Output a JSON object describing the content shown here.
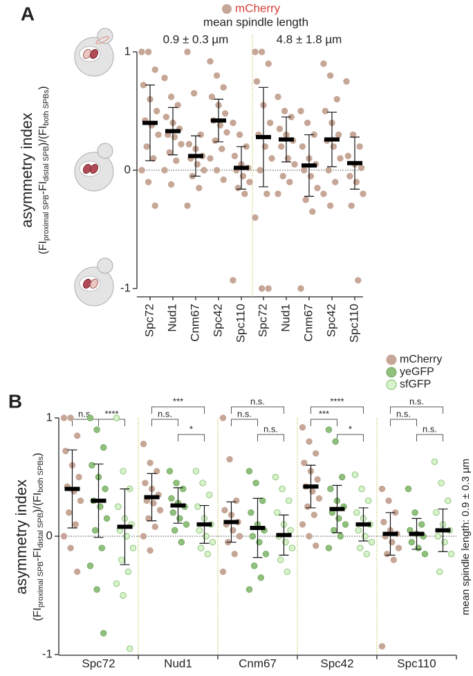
{
  "chart_data": [
    {
      "type": "strip",
      "panel": "A",
      "subtitle": "mean spindle length",
      "y_label": "asymmetry index",
      "y_label_formula": [
        "(FI",
        "proximal SPB",
        "-FI",
        "distal SPB",
        ")/(FI",
        "both SPBs",
        ")"
      ],
      "categories": [
        "Spc72",
        "Nud1",
        "Cnm67",
        "Spc42",
        "Spc110",
        "Spc72",
        "Nud1",
        "Cnm67",
        "Spc42",
        "Spc110"
      ],
      "groups": [
        {
          "label": "0.9 ± 0.3 µm",
          "from": 0,
          "to": 4
        },
        {
          "label": "4.8 ± 1.8 µm",
          "from": 5,
          "to": 9
        }
      ],
      "ylim": [
        -1,
        1
      ],
      "yticks": [
        -1,
        0,
        1
      ],
      "series": [
        {
          "name": "mCherry",
          "color": "#c6a696",
          "stroke": "#c6a696",
          "mean": [
            0.4,
            0.33,
            0.12,
            0.42,
            0.02,
            0.28,
            0.26,
            0.04,
            0.26,
            0.06
          ],
          "sd": [
            0.32,
            0.2,
            0.17,
            0.18,
            0.18,
            0.42,
            0.19,
            0.26,
            0.23,
            0.22
          ],
          "points": [
            [
              1,
              1,
              0.85,
              0.72,
              0.6,
              0.5,
              0.42,
              0.38,
              0.3,
              0.2,
              0.1,
              0,
              -0.1,
              -0.3
            ],
            [
              0.78,
              0.62,
              0.55,
              0.45,
              0.4,
              0.35,
              0.3,
              0.28,
              0.22,
              0.15,
              0.08,
              0,
              -0.12
            ],
            [
              1,
              0.65,
              0.3,
              0.22,
              0.18,
              0.12,
              0.1,
              0.05,
              0,
              -0.05,
              -0.15,
              -0.3
            ],
            [
              0.92,
              0.8,
              0.7,
              0.62,
              0.55,
              0.48,
              0.42,
              0.38,
              0.32,
              0.25,
              0.18,
              0.1,
              0,
              -0.08
            ],
            [
              0.4,
              0.3,
              0.2,
              0.12,
              0.05,
              0.02,
              0,
              -0.05,
              -0.1,
              -0.15,
              -0.2,
              -0.93
            ],
            [
              1,
              1,
              0.9,
              0.75,
              0.55,
              0.4,
              0.3,
              0.2,
              0.1,
              0,
              -0.2,
              -0.4,
              -1,
              -1
            ],
            [
              0.62,
              0.5,
              0.45,
              0.35,
              0.3,
              0.25,
              0.2,
              0.1,
              0.05,
              -0.05,
              -0.1,
              -0.2
            ],
            [
              0.5,
              0.4,
              0.3,
              0.2,
              0.1,
              0.05,
              0,
              -0.05,
              -0.15,
              -0.25,
              -0.35,
              -1
            ],
            [
              0.9,
              0.8,
              0.6,
              0.5,
              0.4,
              0.3,
              0.25,
              0.2,
              0.1,
              0,
              -0.1,
              -0.2,
              -0.3
            ],
            [
              0.75,
              0.3,
              0.2,
              0.12,
              0.05,
              0.02,
              -0.05,
              -0.1,
              -0.2,
              -0.3,
              -0.93
            ]
          ]
        }
      ]
    },
    {
      "type": "strip",
      "panel": "B",
      "side_label": "mean spindle length: 0.9 ± 0.3 µm",
      "y_label": "asymmetry index",
      "y_label_formula": [
        "(FI",
        "proximal SPB",
        "-FI",
        "distal SPB",
        ")/(FI",
        "both SPBs",
        ")"
      ],
      "categories": [
        "Spc72",
        "Nud1",
        "Cnm67",
        "Spc42",
        "Spc110"
      ],
      "ylim": [
        -1,
        1
      ],
      "yticks": [
        -1,
        0,
        1
      ],
      "series": [
        {
          "name": "mCherry",
          "color": "#c6a696",
          "stroke": "#c6a696",
          "mean": [
            0.4,
            0.33,
            0.12,
            0.42,
            0.02
          ],
          "sd": [
            0.33,
            0.2,
            0.17,
            0.18,
            0.18
          ],
          "points": [
            [
              1,
              1,
              0.85,
              0.72,
              0.6,
              0.5,
              0.42,
              0.38,
              0.3,
              0.2,
              0.1,
              0,
              -0.1,
              -0.3
            ],
            [
              0.78,
              0.62,
              0.55,
              0.45,
              0.4,
              0.35,
              0.3,
              0.28,
              0.22,
              0.15,
              0.08,
              0,
              -0.12
            ],
            [
              1,
              0.65,
              0.3,
              0.22,
              0.18,
              0.12,
              0.1,
              0.05,
              0,
              -0.05,
              -0.15,
              -0.3
            ],
            [
              0.92,
              0.8,
              0.7,
              0.62,
              0.55,
              0.48,
              0.42,
              0.38,
              0.32,
              0.25,
              0.18,
              0.1,
              0,
              -0.08
            ],
            [
              0.4,
              0.3,
              0.2,
              0.12,
              0.05,
              0.02,
              0,
              -0.05,
              -0.1,
              -0.15,
              -0.2,
              -0.93
            ]
          ]
        },
        {
          "name": "yeGFP",
          "color": "#8fc07c",
          "stroke": "#6fa35c",
          "mean": [
            0.3,
            0.26,
            0.07,
            0.23,
            0.02
          ],
          "sd": [
            0.31,
            0.15,
            0.25,
            0.2,
            0.13
          ],
          "points": [
            [
              1,
              0.9,
              0.75,
              0.6,
              0.5,
              0.4,
              0.3,
              0.25,
              0.15,
              0.05,
              -0.1,
              -0.25,
              -0.45,
              -0.82
            ],
            [
              0.55,
              0.45,
              0.4,
              0.32,
              0.28,
              0.25,
              0.2,
              0.15,
              0.1,
              0.05,
              -0.05
            ],
            [
              0.55,
              0.45,
              0.3,
              0.2,
              0.1,
              0.05,
              0,
              -0.05,
              -0.15,
              -0.25,
              -0.35,
              -0.45
            ],
            [
              0.9,
              0.8,
              0.5,
              0.4,
              0.3,
              0.25,
              0.2,
              0.15,
              0.1,
              0.05,
              0,
              -0.1
            ],
            [
              0.4,
              0.2,
              0.1,
              0.05,
              0.02,
              0,
              -0.05,
              -0.1,
              -0.15
            ]
          ]
        },
        {
          "name": "sfGFP",
          "color": "#d8f2cc",
          "stroke": "#7dbb68",
          "mean": [
            0.08,
            0.1,
            0.01,
            0.1,
            0.05
          ],
          "sd": [
            0.32,
            0.16,
            0.17,
            0.14,
            0.18
          ],
          "points": [
            [
              1,
              0.55,
              0.4,
              0.25,
              0.15,
              0.1,
              0.05,
              0,
              -0.1,
              -0.2,
              -0.3,
              -0.4,
              -0.5,
              -0.95
            ],
            [
              0.55,
              0.45,
              0.35,
              0.25,
              0.15,
              0.1,
              0.05,
              0,
              -0.05,
              -0.1,
              -0.15
            ],
            [
              0.5,
              0.4,
              0.3,
              0.2,
              0.1,
              0.05,
              0,
              -0.05,
              -0.1,
              -0.2,
              -0.3
            ],
            [
              0.52,
              0.4,
              0.3,
              0.2,
              0.15,
              0.1,
              0.05,
              0,
              -0.05,
              -0.1,
              -0.15
            ],
            [
              0.63,
              0.45,
              0.3,
              0.2,
              0.1,
              0.05,
              0,
              -0.05,
              -0.15,
              -0.3
            ]
          ]
        }
      ],
      "comparisons": [
        {
          "category": 0,
          "a": 0,
          "b": 1,
          "label": "n.s."
        },
        {
          "category": 0,
          "a": 1,
          "b": 2,
          "label": "****"
        },
        {
          "category": 1,
          "a": 0,
          "b": 2,
          "label": "***"
        },
        {
          "category": 1,
          "a": 0,
          "b": 1,
          "label": "n.s."
        },
        {
          "category": 1,
          "a": 1,
          "b": 2,
          "label": "*"
        },
        {
          "category": 2,
          "a": 0,
          "b": 2,
          "label": "n.s."
        },
        {
          "category": 2,
          "a": 0,
          "b": 1,
          "label": "n.s."
        },
        {
          "category": 2,
          "a": 1,
          "b": 2,
          "label": "n.s."
        },
        {
          "category": 3,
          "a": 0,
          "b": 2,
          "label": "****"
        },
        {
          "category": 3,
          "a": 0,
          "b": 1,
          "label": "***"
        },
        {
          "category": 3,
          "a": 1,
          "b": 2,
          "label": "*"
        },
        {
          "category": 4,
          "a": 0,
          "b": 2,
          "label": "n.s."
        },
        {
          "category": 4,
          "a": 0,
          "b": 1,
          "label": "n.s."
        },
        {
          "category": 4,
          "a": 1,
          "b": 2,
          "label": "n.s."
        }
      ]
    }
  ]
}
